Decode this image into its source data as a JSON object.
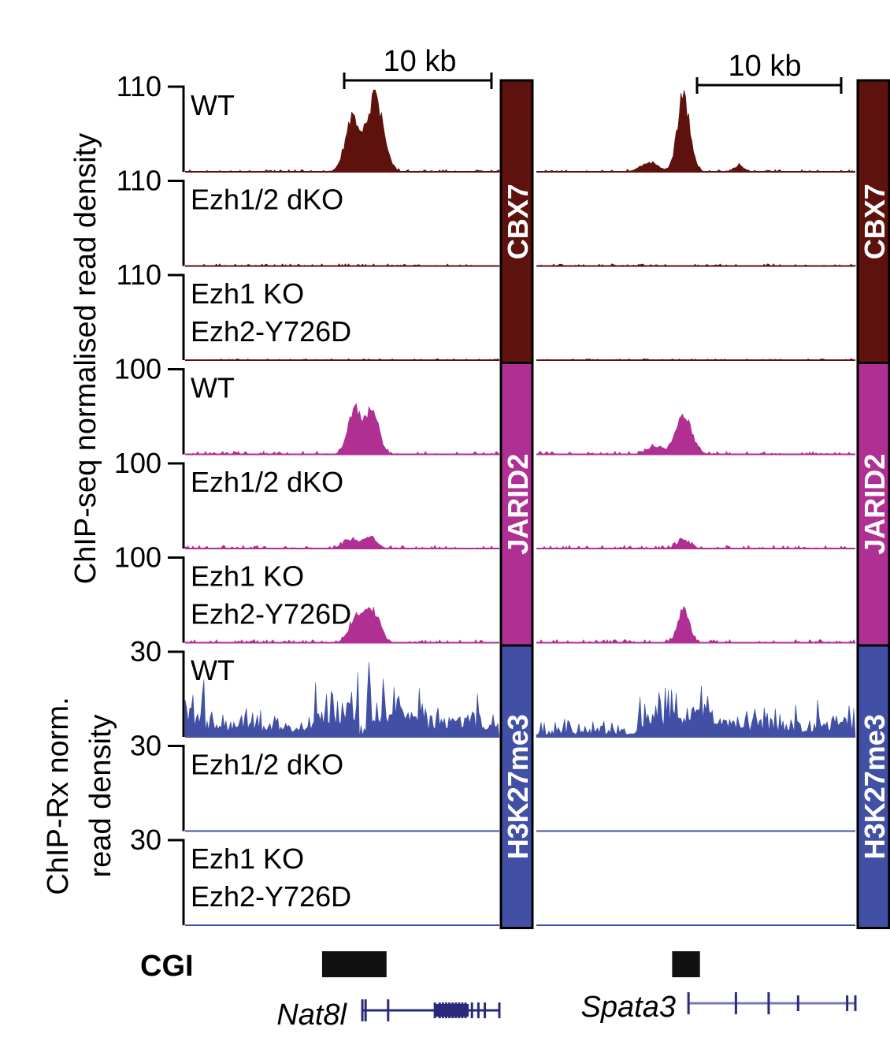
{
  "figure": {
    "ylabel_top": "ChIP-seq normalised read density",
    "ylabel_bottom_line1": "ChIP-Rx norm.",
    "ylabel_bottom_line2": "read density",
    "cgi_label": "CGI"
  },
  "loci": [
    {
      "gene": "Nat8l",
      "scalebar": "10 kb"
    },
    {
      "gene": "Spata3",
      "scalebar": "10 kb"
    }
  ],
  "colors": {
    "CBX7": "#5e120d",
    "JARID2": "#b02f92",
    "H3K27me3": "#4150a4",
    "gene_model": "#2a2a7a",
    "gene_model_light": "#7777b8"
  },
  "chart_data": {
    "type": "area",
    "description_of_axes": "Genome browser coverage tracks; x = genomic position in kb within each locus window, y = read density",
    "marks": [
      {
        "name": "CBX7",
        "ylim_max": [
          110,
          110,
          110
        ],
        "tracks": [
          {
            "condition": "WT",
            "cond_line1": "WT",
            "cond_line2": "",
            "peaks": {
              "Nat8l": [
                {
                  "center_kb": 10.4,
                  "width_kb": 0.45,
                  "height": 72
                },
                {
                  "center_kb": 11.8,
                  "width_kb": 0.5,
                  "height": 100
                }
              ],
              "Spata3": [
                {
                  "center_kb": 9.0,
                  "width_kb": 0.38,
                  "height": 100
                },
                {
                  "center_kb": 6.9,
                  "width_kb": 0.55,
                  "height": 12
                },
                {
                  "center_kb": 12.4,
                  "width_kb": 0.3,
                  "height": 8
                }
              ]
            },
            "noise": 3
          },
          {
            "condition": "Ezh1/2 dKO",
            "cond_line1": "Ezh1/2 dKO",
            "cond_line2": "",
            "peaks": {
              "Nat8l": [],
              "Spata3": []
            },
            "noise": 3
          },
          {
            "condition": "Ezh1 KO Ezh2-Y726D",
            "cond_line1": "Ezh1 KO",
            "cond_line2": "Ezh2-Y726D",
            "peaks": {
              "Nat8l": [],
              "Spata3": []
            },
            "noise": 2
          }
        ]
      },
      {
        "name": "JARID2",
        "ylim_max": [
          100,
          100,
          100
        ],
        "tracks": [
          {
            "condition": "WT",
            "cond_line1": "WT",
            "cond_line2": "",
            "peaks": {
              "Nat8l": [
                {
                  "center_kb": 10.5,
                  "width_kb": 0.4,
                  "height": 55
                },
                {
                  "center_kb": 11.6,
                  "width_kb": 0.4,
                  "height": 55
                }
              ],
              "Spata3": [
                {
                  "center_kb": 9.0,
                  "width_kb": 0.5,
                  "height": 45
                },
                {
                  "center_kb": 7.2,
                  "width_kb": 0.4,
                  "height": 10
                }
              ]
            },
            "noise": 4
          },
          {
            "condition": "Ezh1/2 dKO",
            "cond_line1": "Ezh1/2 dKO",
            "cond_line2": "",
            "peaks": {
              "Nat8l": [
                {
                  "center_kb": 10.3,
                  "width_kb": 0.5,
                  "height": 10
                },
                {
                  "center_kb": 11.5,
                  "width_kb": 0.4,
                  "height": 14
                }
              ],
              "Spata3": [
                {
                  "center_kb": 9.0,
                  "width_kb": 0.4,
                  "height": 10
                }
              ]
            },
            "noise": 4
          },
          {
            "condition": "Ezh1 KO Ezh2-Y726D",
            "cond_line1": "Ezh1 KO",
            "cond_line2": "Ezh2-Y726D",
            "peaks": {
              "Nat8l": [
                {
                  "center_kb": 10.6,
                  "width_kb": 0.45,
                  "height": 28
                },
                {
                  "center_kb": 11.6,
                  "width_kb": 0.45,
                  "height": 40
                }
              ],
              "Spata3": [
                {
                  "center_kb": 9.0,
                  "width_kb": 0.35,
                  "height": 40
                }
              ]
            },
            "noise": 4
          }
        ]
      },
      {
        "name": "H3K27me3",
        "ylim_max": [
          30,
          30,
          30
        ],
        "tracks": [
          {
            "condition": "WT",
            "cond_line1": "WT",
            "cond_line2": "",
            "broad": {
              "Nat8l": [
                {
                  "start_kb": 0.0,
                  "end_kb": 1.2,
                  "height": 16
                },
                {
                  "start_kb": 1.2,
                  "end_kb": 8.0,
                  "height": 7
                },
                {
                  "start_kb": 8.0,
                  "end_kb": 10.8,
                  "height": 18
                },
                {
                  "start_kb": 11.3,
                  "end_kb": 15.0,
                  "height": 20
                },
                {
                  "start_kb": 15.0,
                  "end_kb": 19.5,
                  "height": 9
                }
              ],
              "Spata3": [
                {
                  "start_kb": 0.0,
                  "end_kb": 6.2,
                  "height": 3
                },
                {
                  "start_kb": 6.2,
                  "end_kb": 10.8,
                  "height": 15
                },
                {
                  "start_kb": 10.8,
                  "end_kb": 19.5,
                  "height": 7
                }
              ]
            },
            "noise": 5
          },
          {
            "condition": "Ezh1/2 dKO",
            "cond_line1": "Ezh1/2 dKO",
            "cond_line2": "",
            "broad": {
              "Nat8l": [],
              "Spata3": []
            },
            "noise": 0
          },
          {
            "condition": "Ezh1 KO Ezh2-Y726D",
            "cond_line1": "Ezh1 KO",
            "cond_line2": "Ezh2-Y726D",
            "broad": {
              "Nat8l": [],
              "Spata3": []
            },
            "noise": 0
          }
        ]
      }
    ],
    "x_range_kb": [
      0,
      19.5
    ],
    "cgi": {
      "Nat8l": [
        {
          "start_kb": 8.5,
          "end_kb": 12.5
        }
      ],
      "Spata3": [
        {
          "start_kb": 8.3,
          "end_kb": 10.0
        }
      ]
    },
    "gene_models": {
      "Nat8l": {
        "start_kb": 11.0,
        "end_kb": 19.5,
        "exons_kb": [
          11.0,
          11.2,
          12.6,
          15.5,
          15.8,
          16.0,
          16.2,
          16.4,
          16.6,
          16.8,
          17.0,
          17.2,
          17.4,
          17.8,
          18.2,
          18.6,
          19.5
        ]
      },
      "Spata3": {
        "start_kb": 9.3,
        "end_kb": 19.5,
        "exons_kb": [
          9.3,
          12.2,
          14.2,
          16.0,
          19.0,
          19.5
        ]
      }
    }
  }
}
